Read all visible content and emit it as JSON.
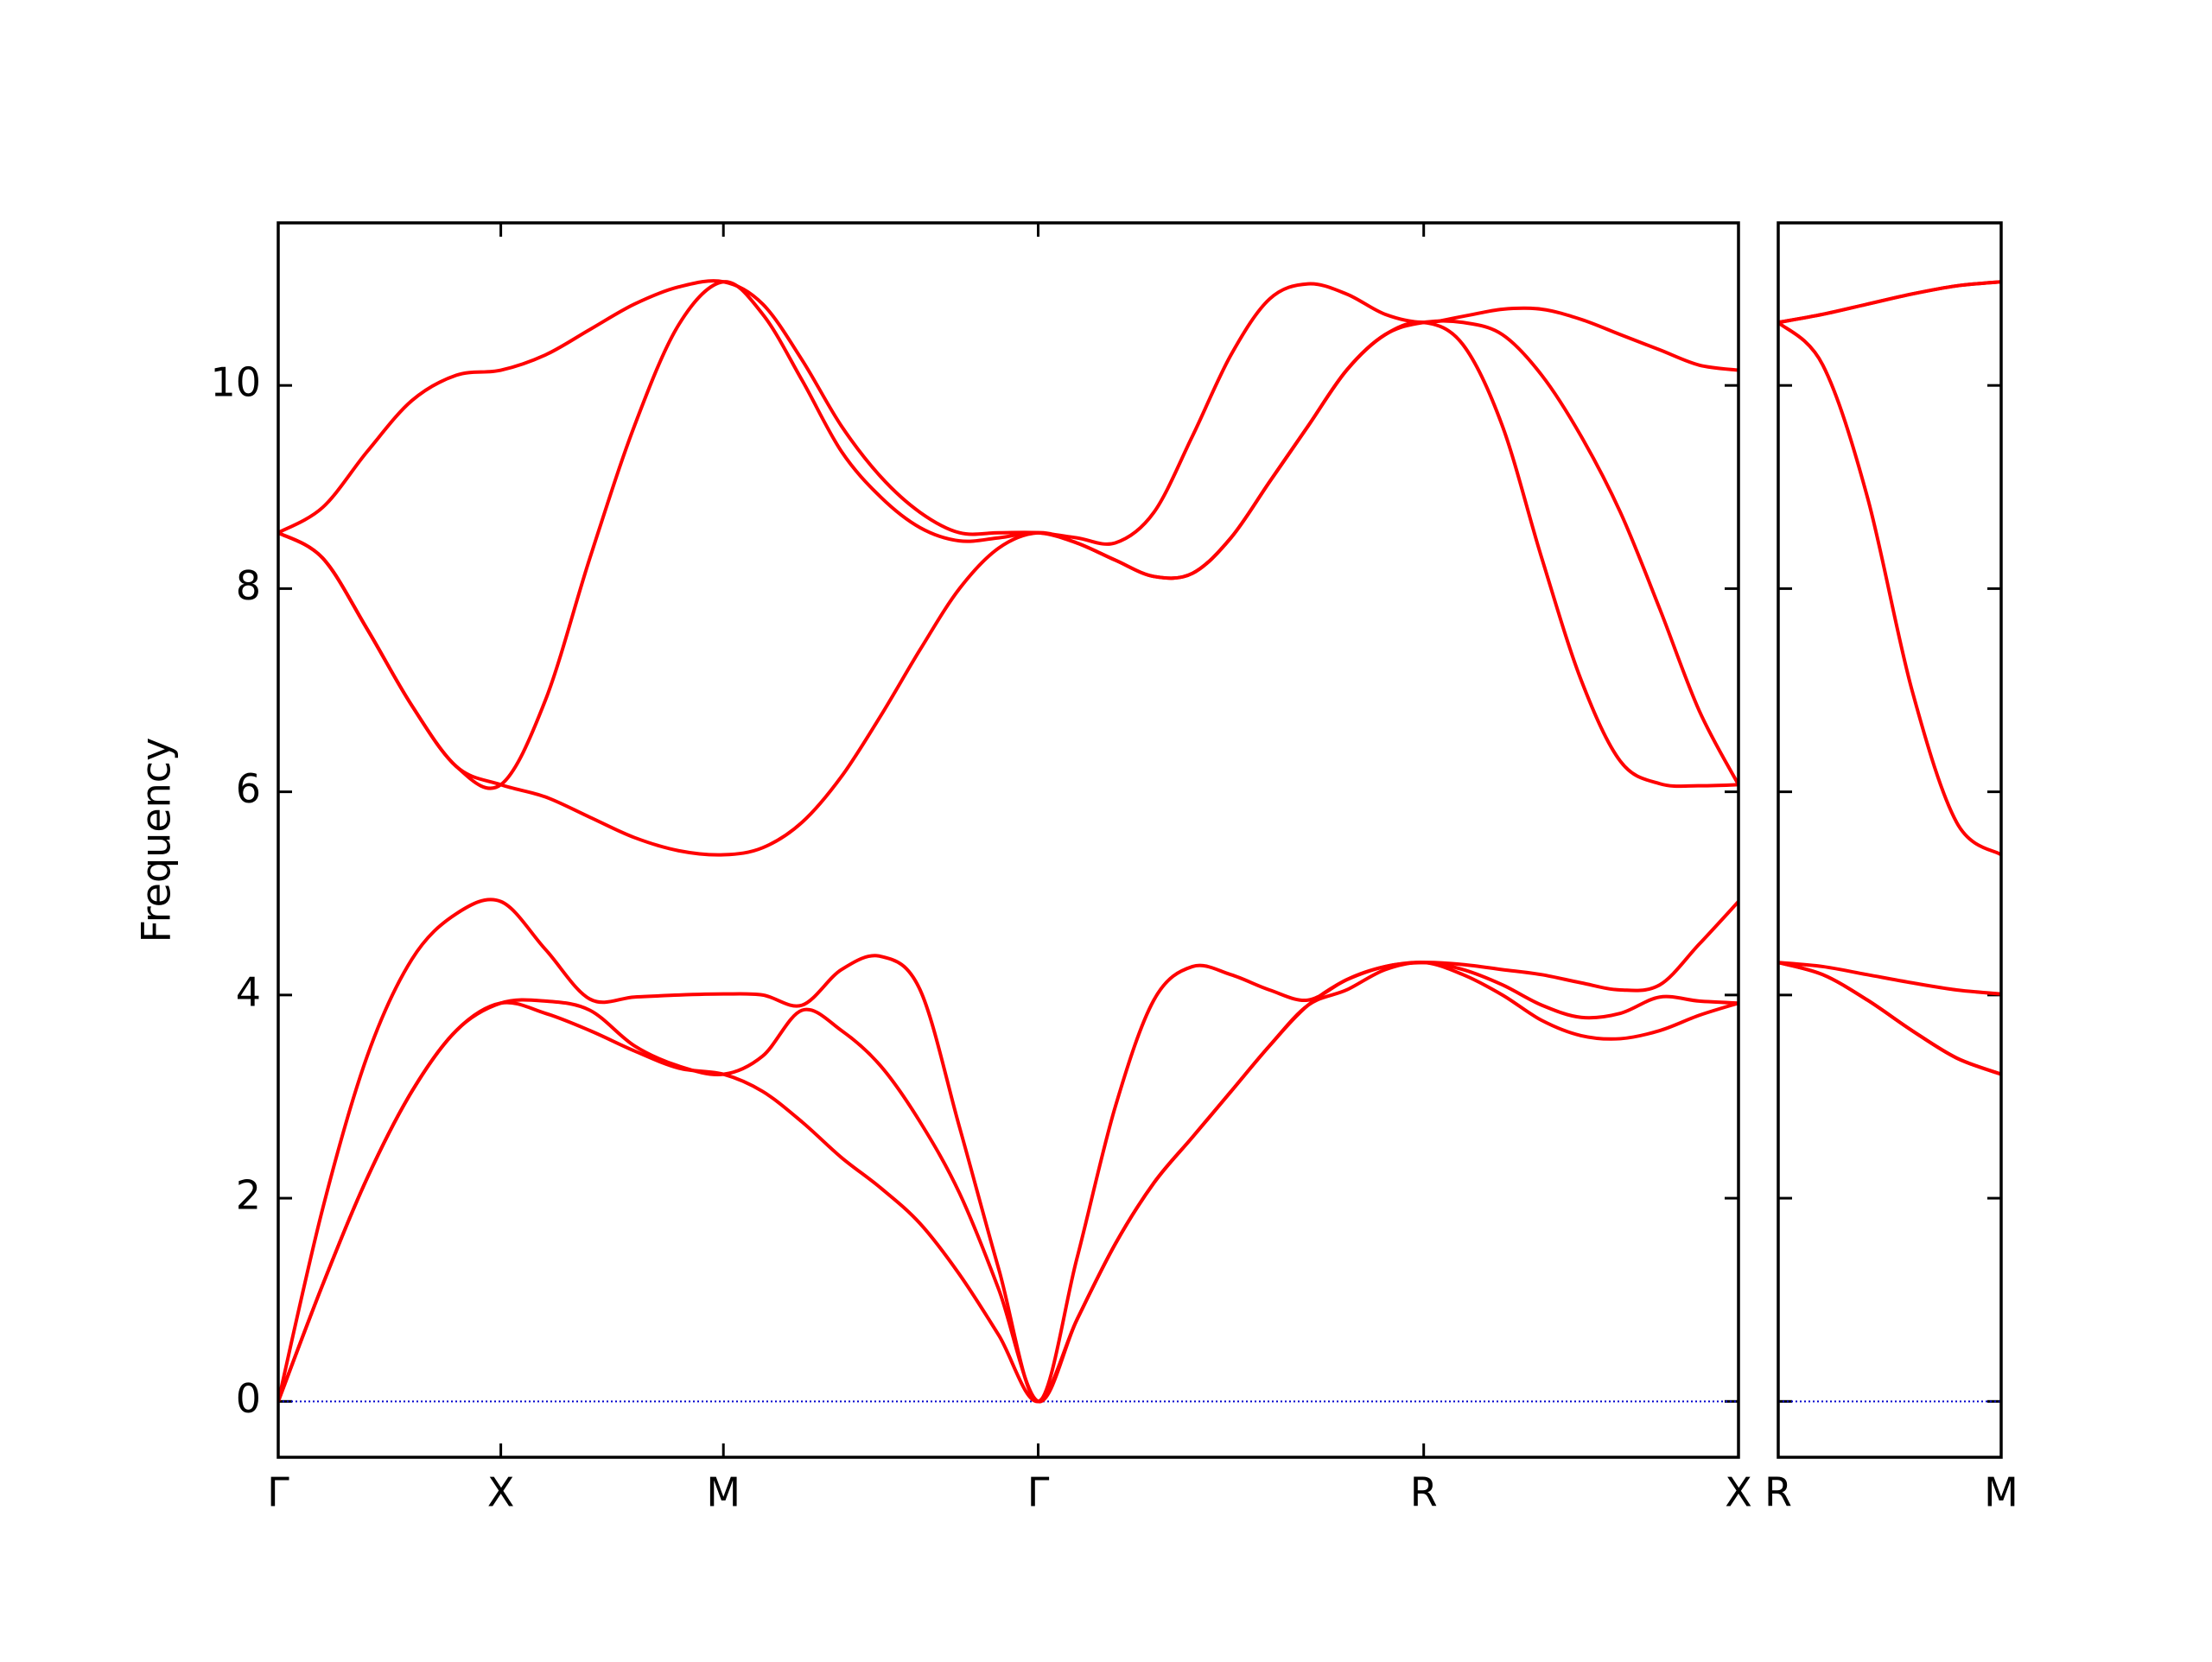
{
  "chart_data": [
    {
      "type": "line",
      "y_label": "Frequency",
      "x": [
        0,
        0.1,
        0.2,
        0.3,
        0.4,
        0.5,
        0.6,
        0.7,
        0.8,
        0.9,
        1.0,
        1.0884,
        1.1768,
        1.2652,
        1.3536,
        1.4419,
        1.5303,
        1.6187,
        1.7071,
        1.7937,
        1.8803,
        1.9669,
        2.0535,
        2.1401,
        2.2267,
        2.3133,
        2.3999,
        2.4865,
        2.5731,
        2.6615,
        2.7499,
        2.8383,
        2.9267,
        3.015,
        3.1034,
        3.1918,
        3.2802
      ],
      "series": [
        {
          "color": "#ff0000",
          "values": [
            0,
            1.15,
            2.2,
            3.05,
            3.65,
            3.92,
            3.82,
            3.65,
            3.45,
            3.28,
            3.22,
            3.05,
            2.75,
            2.4,
            2.1,
            1.75,
            1.25,
            0.65,
            0,
            0.8,
            1.55,
            2.15,
            2.6,
            3.05,
            3.5,
            3.9,
            4.05,
            4.25,
            4.32,
            4.2,
            4.0,
            3.75,
            3.6,
            3.57,
            3.65,
            3.8,
            3.92
          ]
        },
        {
          "color": "#ff0000",
          "values": [
            0,
            1.15,
            2.2,
            3.05,
            3.65,
            3.92,
            3.94,
            3.85,
            3.5,
            3.3,
            3.22,
            3.4,
            3.85,
            3.65,
            3.3,
            2.75,
            2.05,
            1.1,
            0,
            0.8,
            1.55,
            2.15,
            2.6,
            3.05,
            3.5,
            3.9,
            4.15,
            4.28,
            4.32,
            4.25,
            4.1,
            3.9,
            3.78,
            3.82,
            3.98,
            3.94,
            3.92
          ]
        },
        {
          "color": "#ff0000",
          "values": [
            0,
            1.9,
            3.4,
            4.35,
            4.8,
            4.92,
            4.45,
            3.96,
            3.98,
            4.0,
            4.01,
            4.0,
            3.9,
            4.25,
            4.38,
            4.05,
            2.7,
            1.3,
            0,
            1.4,
            2.9,
            3.95,
            4.28,
            4.2,
            4.05,
            3.95,
            4.15,
            4.28,
            4.32,
            4.3,
            4.25,
            4.2,
            4.12,
            4.05,
            4.1,
            4.5,
            4.92
          ]
        },
        {
          "color": "#ff0000",
          "values": [
            8.55,
            8.3,
            7.6,
            6.85,
            6.25,
            6.07,
            5.95,
            5.75,
            5.55,
            5.42,
            5.38,
            5.45,
            5.7,
            6.15,
            6.75,
            7.4,
            8.0,
            8.4,
            8.55,
            8.45,
            8.28,
            8.12,
            8.15,
            8.5,
            9.05,
            9.6,
            10.15,
            10.5,
            10.62,
            10.4,
            9.6,
            8.3,
            7.1,
            6.3,
            6.08,
            6.06,
            6.07
          ]
        },
        {
          "color": "#ff0000",
          "values": [
            8.55,
            8.3,
            7.6,
            6.85,
            6.25,
            6.07,
            6.9,
            8.3,
            9.6,
            10.6,
            11.02,
            10.7,
            10.05,
            9.35,
            8.9,
            8.6,
            8.47,
            8.5,
            8.55,
            8.45,
            8.28,
            8.12,
            8.15,
            8.5,
            9.05,
            9.6,
            10.15,
            10.5,
            10.62,
            10.62,
            10.5,
            10.1,
            9.5,
            8.75,
            7.8,
            6.8,
            6.07
          ]
        },
        {
          "color": "#ff0000",
          "values": [
            8.55,
            8.8,
            9.35,
            9.85,
            10.1,
            10.15,
            10.3,
            10.55,
            10.8,
            10.97,
            11.02,
            10.8,
            10.25,
            9.6,
            9.1,
            8.75,
            8.55,
            8.55,
            8.55,
            8.5,
            8.45,
            8.75,
            9.5,
            10.3,
            10.85,
            11.0,
            10.9,
            10.7,
            10.62,
            10.68,
            10.75,
            10.75,
            10.65,
            10.5,
            10.35,
            10.2,
            10.15
          ]
        }
      ],
      "xlim": [
        0,
        3.2802
      ],
      "xticks": [
        {
          "value": 0,
          "label": "Γ"
        },
        {
          "value": 0.5,
          "label": "X"
        },
        {
          "value": 1.0,
          "label": "M"
        },
        {
          "value": 1.7071,
          "label": "Γ"
        },
        {
          "value": 2.5731,
          "label": "R"
        },
        {
          "value": 3.2802,
          "label": "X"
        }
      ],
      "ylim": [
        -0.55,
        11.6
      ],
      "yticks": [
        0,
        2,
        4,
        6,
        8,
        10
      ],
      "hlines": [
        {
          "y": 0,
          "color": "#0000cc",
          "linestyle": "dotted"
        }
      ]
    },
    {
      "type": "line",
      "x": [
        0,
        0.1,
        0.2,
        0.3,
        0.4,
        0.5
      ],
      "series": [
        {
          "color": "#ff0000",
          "values": [
            4.32,
            4.2,
            3.95,
            3.65,
            3.38,
            3.22
          ]
        },
        {
          "color": "#ff0000",
          "values": [
            4.32,
            4.2,
            3.95,
            3.65,
            3.38,
            3.22
          ]
        },
        {
          "color": "#ff0000",
          "values": [
            4.32,
            4.28,
            4.2,
            4.12,
            4.05,
            4.01
          ]
        },
        {
          "color": "#ff0000",
          "values": [
            10.62,
            10.2,
            8.9,
            7.0,
            5.7,
            5.38
          ]
        },
        {
          "color": "#ff0000",
          "values": [
            10.62,
            10.7,
            10.8,
            10.9,
            10.98,
            11.02
          ]
        },
        {
          "color": "#ff0000",
          "values": [
            10.62,
            10.7,
            10.8,
            10.9,
            10.98,
            11.02
          ]
        }
      ],
      "xlim": [
        0,
        0.5
      ],
      "xticks": [
        {
          "value": 0,
          "label": "R"
        },
        {
          "value": 0.5,
          "label": "M"
        }
      ],
      "ylim": [
        -0.55,
        11.6
      ],
      "yticks": [
        0,
        2,
        4,
        6,
        8,
        10
      ],
      "hlines": [
        {
          "y": 0,
          "color": "#0000cc",
          "linestyle": "dotted"
        }
      ]
    }
  ]
}
